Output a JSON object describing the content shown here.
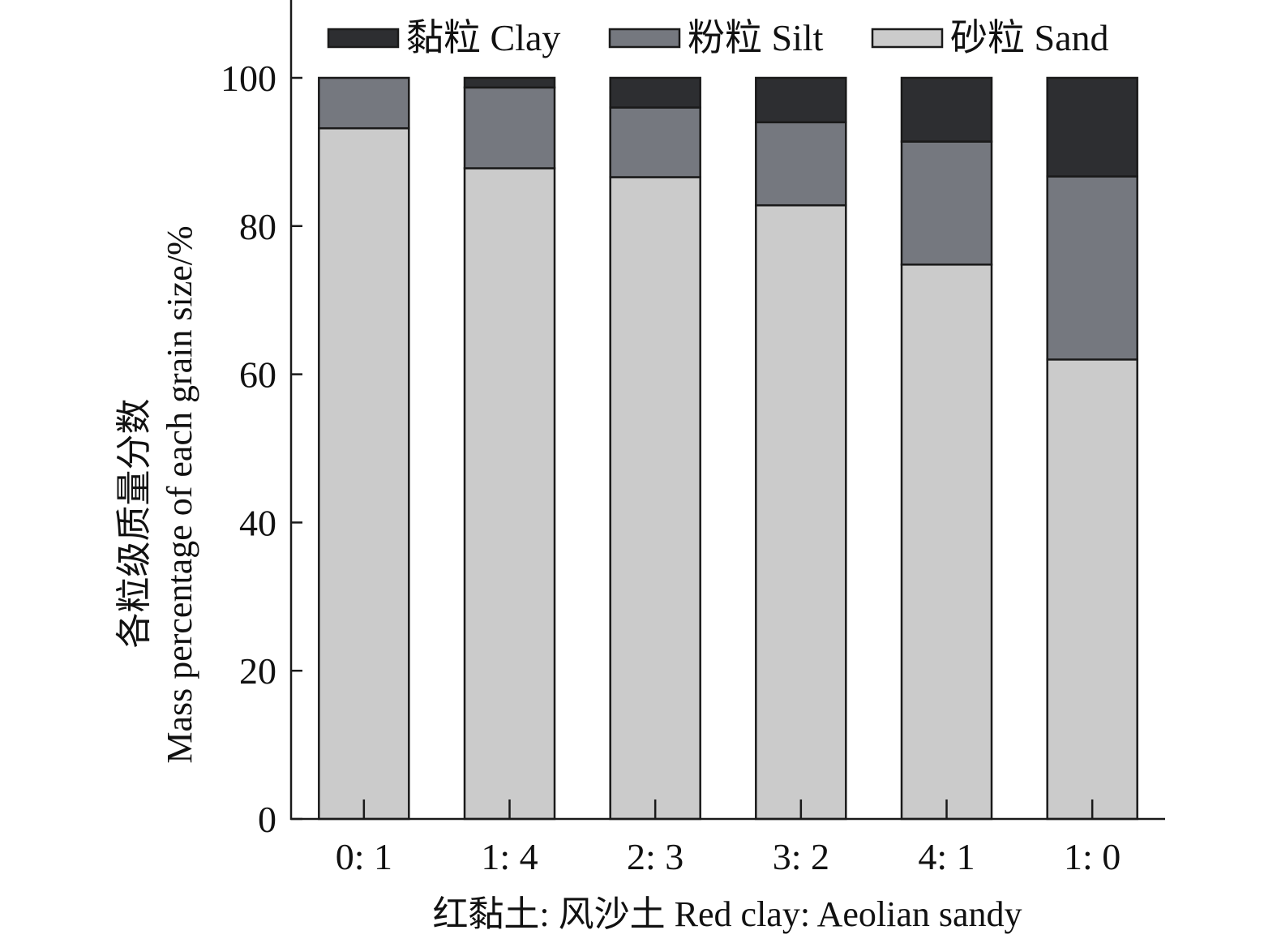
{
  "chart_data": {
    "type": "bar",
    "stacked": true,
    "categories": [
      "0: 1",
      "1: 4",
      "2: 3",
      "3: 2",
      "4: 1",
      "1: 0"
    ],
    "series": [
      {
        "name": "砂粒 Sand",
        "values": [
          93.2,
          87.8,
          86.6,
          82.8,
          74.8,
          62.0
        ]
      },
      {
        "name": "粉粒 Silt",
        "values": [
          6.8,
          10.9,
          9.4,
          11.2,
          16.6,
          24.7
        ]
      },
      {
        "name": "黏粒 Clay",
        "values": [
          0.0,
          1.3,
          4.0,
          6.0,
          8.6,
          13.3
        ]
      }
    ],
    "colors": {
      "砂粒 Sand": "#cbcbcb",
      "粉粒 Silt": "#75787f",
      "黏粒 Clay": "#2d2e31"
    },
    "legend_order": [
      "黏粒 Clay",
      "粉粒 Silt",
      "砂粒 Sand"
    ],
    "xlabel": "红黏土: 风沙土 Red clay: Aeolian sandy",
    "ylabel_line1": "各粒级质量分数",
    "ylabel_line2": "Mass percentage of each grain size/%",
    "yticks": [
      0,
      20,
      40,
      60,
      80,
      100
    ],
    "ylim": [
      0,
      110
    ],
    "legend_position": "top",
    "grid": false
  }
}
